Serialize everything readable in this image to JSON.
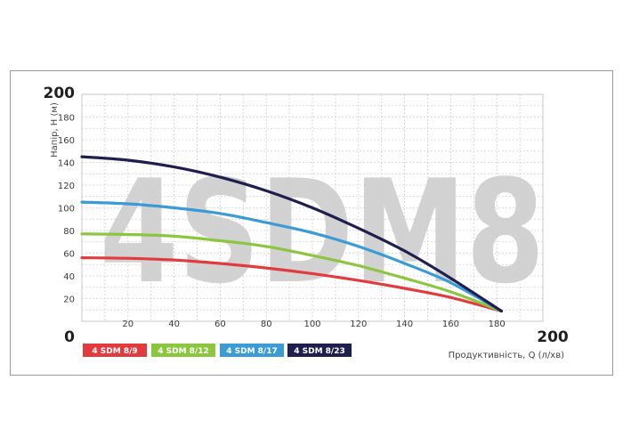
{
  "chart_data": {
    "type": "line",
    "watermark": "4SDM8",
    "ylabel": "Напір, Н (м)",
    "xlabel": "Продуктивність, Q (л/хв)",
    "xlim": [
      0,
      200
    ],
    "ylim": [
      0,
      200
    ],
    "x_ticks": [
      20,
      40,
      60,
      80,
      100,
      120,
      140,
      160,
      180
    ],
    "y_ticks": [
      20,
      40,
      60,
      80,
      100,
      120,
      140,
      160,
      180
    ],
    "x_min_label": "0",
    "x_max_label": "200",
    "y_min_label": "0",
    "y_max_label": "200",
    "grid": true,
    "legend_position": "bottom-left",
    "series": [
      {
        "name": "4 SDM 8/9",
        "color": "#e23b3f",
        "x": [
          0,
          20,
          40,
          60,
          80,
          100,
          120,
          140,
          160,
          182
        ],
        "y": [
          56,
          55.5,
          54,
          51,
          47,
          42,
          36,
          29,
          21,
          9
        ]
      },
      {
        "name": "4 SDM 8/12",
        "color": "#8cc63f",
        "x": [
          0,
          20,
          40,
          60,
          80,
          100,
          120,
          140,
          160,
          182
        ],
        "y": [
          77,
          76.5,
          75,
          71,
          66,
          58,
          49,
          38,
          26,
          9
        ]
      },
      {
        "name": "4 SDM 8/17",
        "color": "#3a9bd5",
        "x": [
          0,
          20,
          40,
          60,
          80,
          100,
          120,
          140,
          160,
          182
        ],
        "y": [
          105,
          103.5,
          100,
          95,
          87,
          78,
          66,
          51,
          34,
          9
        ]
      },
      {
        "name": "4 SDM 8/23",
        "color": "#1f1f4f",
        "x": [
          0,
          20,
          40,
          60,
          80,
          100,
          120,
          140,
          160,
          182
        ],
        "y": [
          145,
          142,
          136,
          127,
          115,
          100,
          82,
          62,
          38,
          9
        ]
      }
    ]
  }
}
